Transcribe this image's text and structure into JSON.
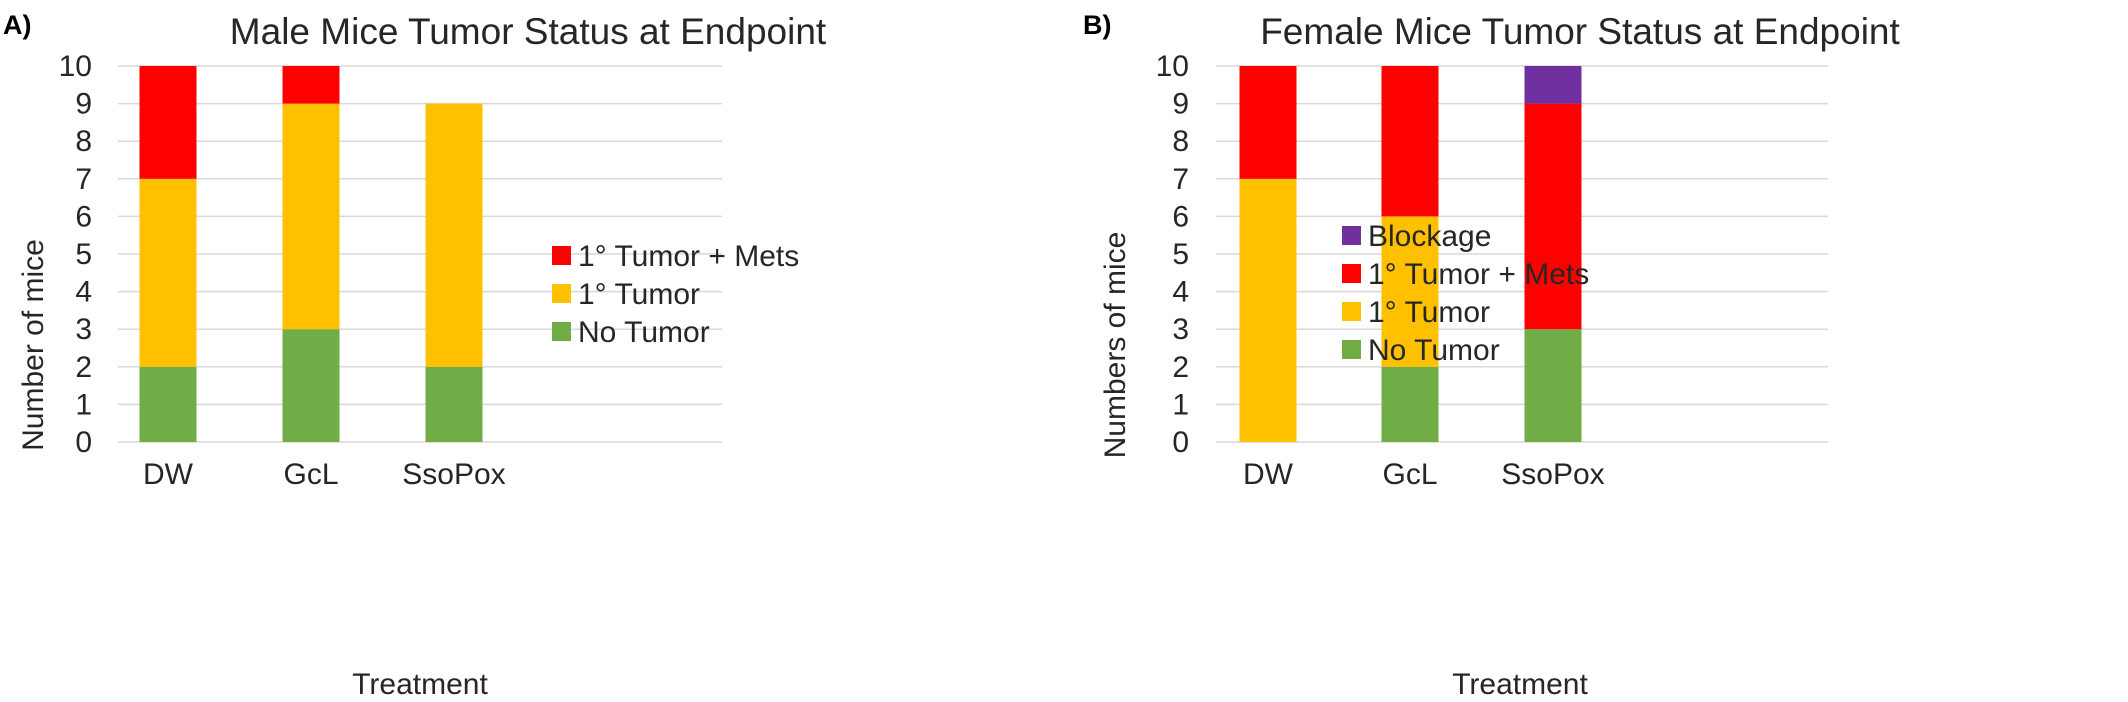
{
  "chart_data": [
    {
      "type": "bar",
      "stacked": true,
      "panel": "A)",
      "title": "Male Mice Tumor Status at Endpoint",
      "xlabel": "Treatment",
      "ylabel": "Number of mice",
      "ylim": [
        0,
        10
      ],
      "yticks": [
        0,
        1,
        2,
        3,
        4,
        5,
        6,
        7,
        8,
        9,
        10
      ],
      "grid": true,
      "legend_position": "right",
      "categories": [
        "DW",
        "GcL",
        "SsoPox"
      ],
      "series": [
        {
          "name": "No Tumor",
          "color": "#70ad47",
          "values": [
            2,
            3,
            2
          ]
        },
        {
          "name": "1° Tumor",
          "color": "#ffc000",
          "values": [
            5,
            6,
            7
          ]
        },
        {
          "name": "1° Tumor + Mets",
          "color": "#ff0000",
          "values": [
            3,
            1,
            0
          ]
        }
      ]
    },
    {
      "type": "bar",
      "stacked": true,
      "panel": "B)",
      "title": "Female Mice Tumor Status at Endpoint",
      "xlabel": "Treatment",
      "ylabel": "Numbers of mice",
      "ylim": [
        0,
        10
      ],
      "yticks": [
        0,
        1,
        2,
        3,
        4,
        5,
        6,
        7,
        8,
        9,
        10
      ],
      "grid": true,
      "legend_position": "right",
      "categories": [
        "DW",
        "GcL",
        "SsoPox"
      ],
      "series": [
        {
          "name": "No Tumor",
          "color": "#70ad47",
          "values": [
            0,
            2,
            3
          ]
        },
        {
          "name": "1° Tumor",
          "color": "#ffc000",
          "values": [
            7,
            4,
            0
          ]
        },
        {
          "name": "1° Tumor + Mets",
          "color": "#ff0000",
          "values": [
            3,
            4,
            6
          ]
        },
        {
          "name": "Blockage",
          "color": "#7030a0",
          "values": [
            0,
            0,
            1
          ]
        }
      ]
    }
  ]
}
